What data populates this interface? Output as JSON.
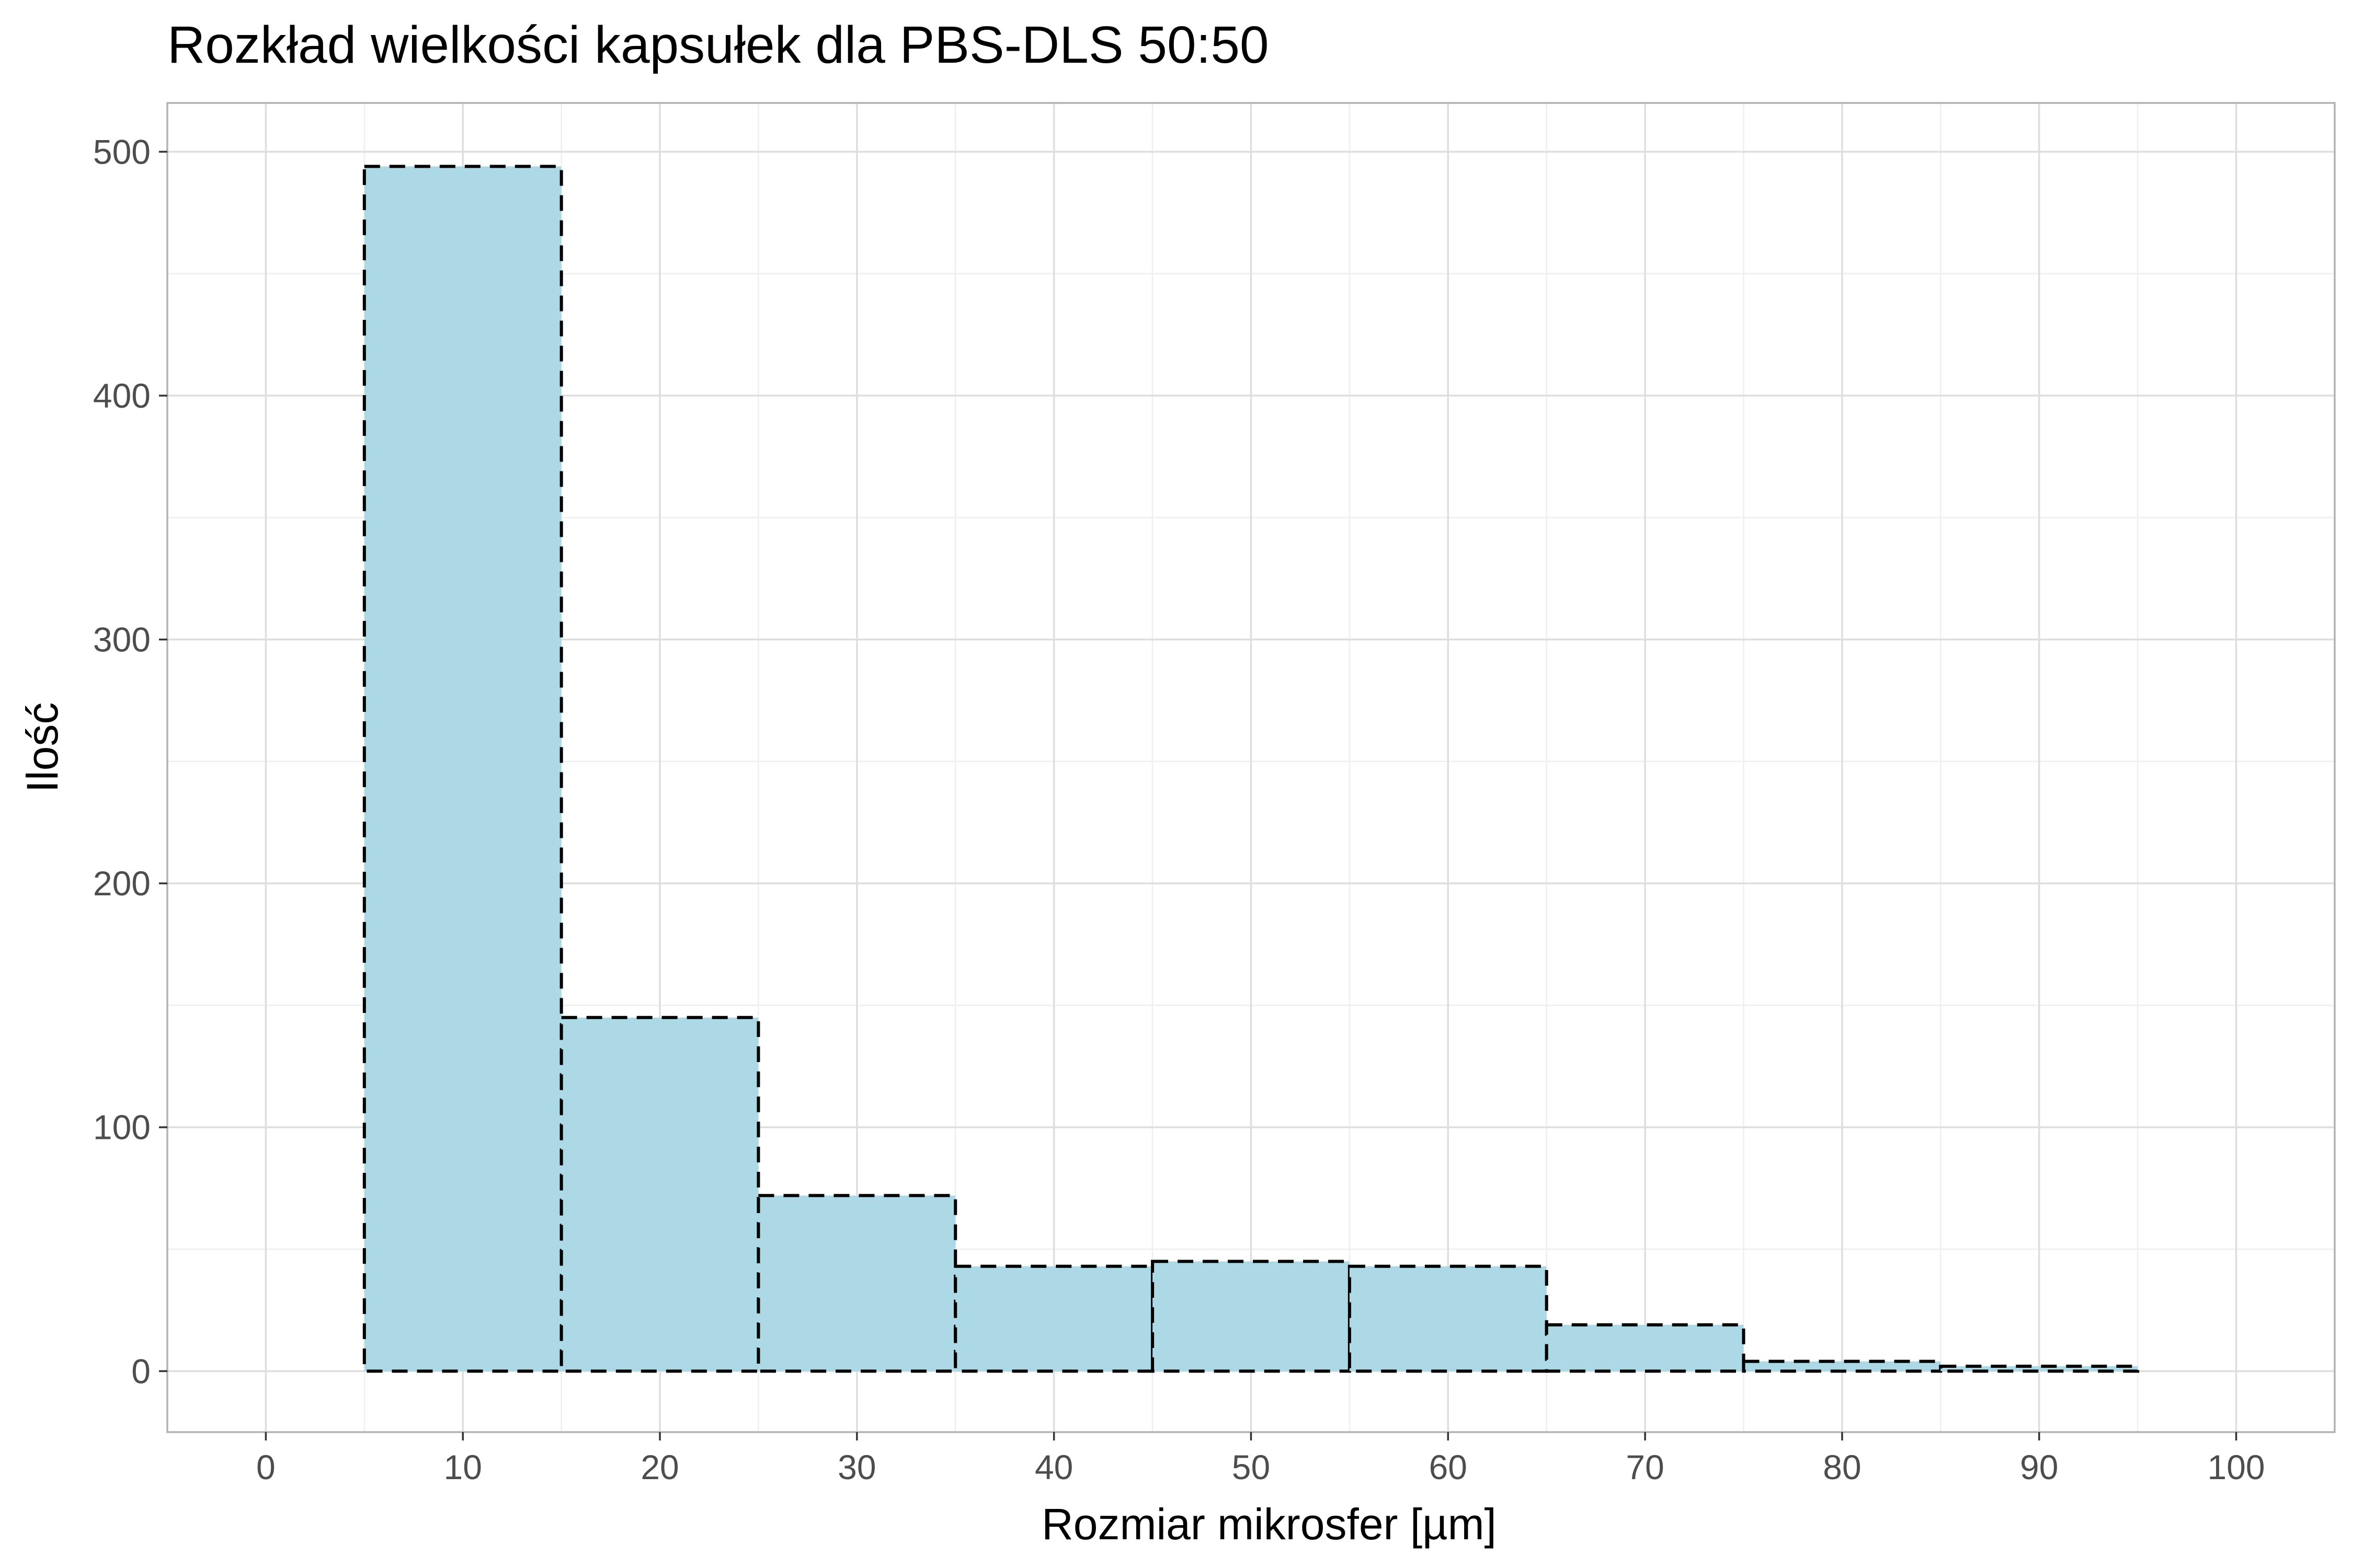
{
  "chart_data": {
    "type": "bar",
    "title": "Rozkład wielkości kapsułek dla PBS-DLS 50:50",
    "xlabel": "Rozmiar mikrosfer [µm]",
    "ylabel": "Ilość",
    "xlim": [
      -5,
      105
    ],
    "ylim": [
      -25,
      520
    ],
    "x_ticks": [
      0,
      10,
      20,
      30,
      40,
      50,
      60,
      70,
      80,
      90,
      100
    ],
    "y_ticks": [
      0,
      100,
      200,
      300,
      400,
      500
    ],
    "x_tick_labels": [
      "0",
      "10",
      "20",
      "30",
      "40",
      "50",
      "60",
      "70",
      "80",
      "90",
      "100"
    ],
    "y_tick_labels": [
      "0",
      "100",
      "200",
      "300",
      "400",
      "500"
    ],
    "bins": [
      {
        "start": 5,
        "end": 15,
        "count": 494
      },
      {
        "start": 15,
        "end": 25,
        "count": 145
      },
      {
        "start": 25,
        "end": 35,
        "count": 72
      },
      {
        "start": 35,
        "end": 45,
        "count": 43
      },
      {
        "start": 45,
        "end": 55,
        "count": 45
      },
      {
        "start": 55,
        "end": 65,
        "count": 43
      },
      {
        "start": 65,
        "end": 75,
        "count": 19
      },
      {
        "start": 75,
        "end": 85,
        "count": 4
      },
      {
        "start": 85,
        "end": 95,
        "count": 2
      }
    ],
    "grid": true,
    "bar_fill": "#add8e6",
    "bar_stroke": "#000000",
    "bar_stroke_style": "dashed",
    "panel_border": "#b3b3b3",
    "grid_major_color": "#dedede",
    "grid_minor_color": "#efefef"
  }
}
